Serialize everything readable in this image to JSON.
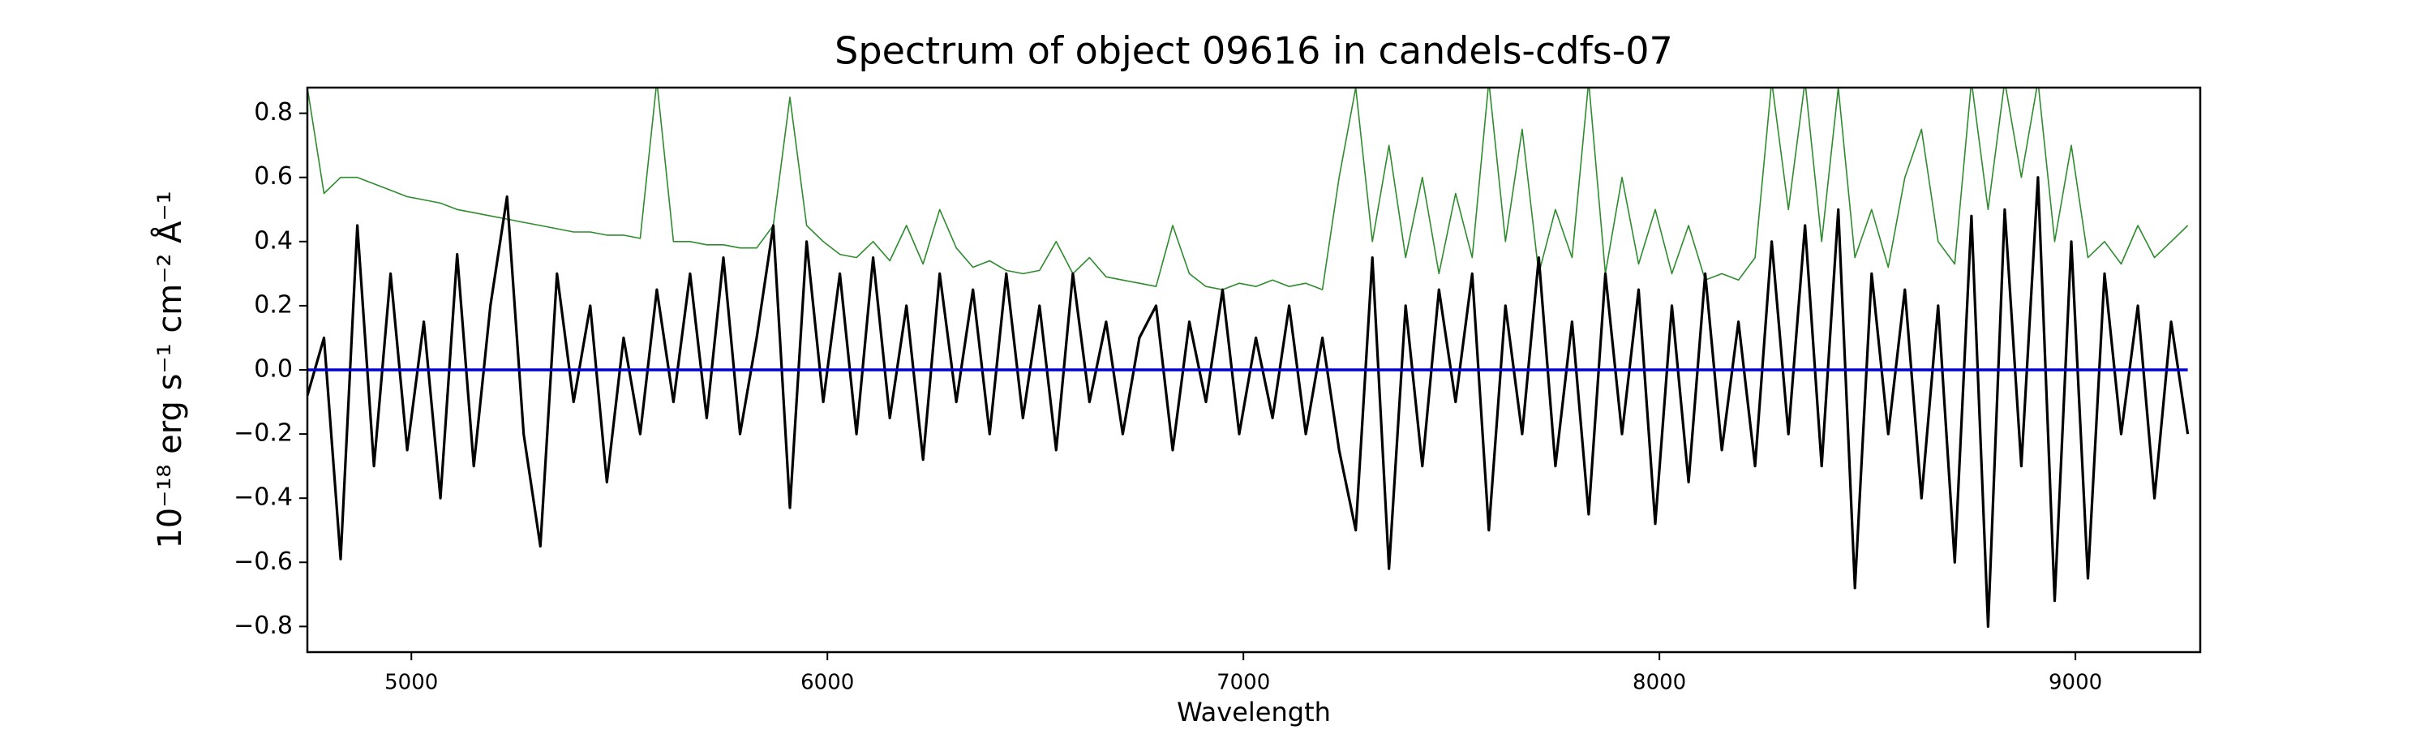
{
  "chart_data": {
    "type": "line",
    "title": "Spectrum of object 09616 in candels-cdfs-07",
    "x_label": "Wavelength",
    "y_label": "10⁻¹⁸ erg s⁻¹ cm⁻² Å⁻¹",
    "xlim": [
      4750,
      9300
    ],
    "xticks": [
      5000,
      6000,
      7000,
      8000,
      9000
    ],
    "ylim": [
      -0.88,
      0.88
    ],
    "yticks": [
      {
        "value": -0.8,
        "label": "−0.8"
      },
      {
        "value": -0.6,
        "label": "−0.6"
      },
      {
        "value": -0.4,
        "label": "−0.4"
      },
      {
        "value": -0.2,
        "label": "−0.2"
      },
      {
        "value": 0,
        "label": "0.0"
      },
      0.2,
      0.4,
      0.6,
      0.8
    ],
    "grid": false,
    "x": [
      4750,
      4790,
      4830,
      4870,
      4910,
      4950,
      4990,
      5030,
      5070,
      5110,
      5150,
      5190,
      5230,
      5270,
      5310,
      5350,
      5390,
      5430,
      5470,
      5510,
      5550,
      5590,
      5630,
      5670,
      5710,
      5750,
      5790,
      5830,
      5870,
      5910,
      5950,
      5990,
      6030,
      6070,
      6110,
      6150,
      6190,
      6230,
      6270,
      6310,
      6350,
      6390,
      6430,
      6470,
      6510,
      6550,
      6590,
      6630,
      6670,
      6710,
      6750,
      6790,
      6830,
      6870,
      6910,
      6950,
      6990,
      7030,
      7070,
      7110,
      7150,
      7190,
      7230,
      7270,
      7310,
      7350,
      7390,
      7430,
      7470,
      7510,
      7550,
      7590,
      7630,
      7670,
      7710,
      7750,
      7790,
      7830,
      7870,
      7910,
      7950,
      7990,
      8030,
      8070,
      8110,
      8150,
      8190,
      8230,
      8270,
      8310,
      8350,
      8390,
      8430,
      8470,
      8510,
      8550,
      8590,
      8630,
      8670,
      8710,
      8750,
      8790,
      8830,
      8870,
      8910,
      8950,
      8990,
      9030,
      9070,
      9110,
      9150,
      9190,
      9230,
      9270
    ],
    "series": [
      {
        "color": "#2e8b2e",
        "width": 1.6,
        "values": [
          0.88,
          0.55,
          0.6,
          0.6,
          0.58,
          0.56,
          0.54,
          0.53,
          0.52,
          0.5,
          0.49,
          0.48,
          0.47,
          0.46,
          0.45,
          0.44,
          0.43,
          0.43,
          0.42,
          0.42,
          0.41,
          0.9,
          0.4,
          0.4,
          0.39,
          0.39,
          0.38,
          0.38,
          0.45,
          0.85,
          0.45,
          0.4,
          0.36,
          0.35,
          0.4,
          0.34,
          0.45,
          0.33,
          0.5,
          0.38,
          0.32,
          0.34,
          0.31,
          0.3,
          0.31,
          0.4,
          0.3,
          0.35,
          0.29,
          0.28,
          0.27,
          0.26,
          0.45,
          0.3,
          0.26,
          0.25,
          0.27,
          0.26,
          0.28,
          0.26,
          0.27,
          0.25,
          0.6,
          0.88,
          0.4,
          0.7,
          0.35,
          0.6,
          0.3,
          0.55,
          0.35,
          0.9,
          0.4,
          0.75,
          0.3,
          0.5,
          0.35,
          0.9,
          0.3,
          0.6,
          0.33,
          0.5,
          0.3,
          0.45,
          0.28,
          0.3,
          0.28,
          0.35,
          0.9,
          0.5,
          0.9,
          0.4,
          0.88,
          0.35,
          0.5,
          0.32,
          0.6,
          0.75,
          0.4,
          0.33,
          0.9,
          0.5,
          0.9,
          0.6,
          0.9,
          0.4,
          0.7,
          0.35,
          0.4,
          0.33,
          0.45,
          0.35,
          0.4,
          0.45
        ]
      },
      {
        "color": "#000000",
        "width": 3.2,
        "values": [
          -0.08,
          0.1,
          -0.59,
          0.45,
          -0.3,
          0.3,
          -0.25,
          0.15,
          -0.4,
          0.36,
          -0.3,
          0.2,
          0.54,
          -0.2,
          -0.55,
          0.3,
          -0.1,
          0.2,
          -0.35,
          0.1,
          -0.2,
          0.25,
          -0.1,
          0.3,
          -0.15,
          0.35,
          -0.2,
          0.1,
          0.45,
          -0.43,
          0.4,
          -0.1,
          0.3,
          -0.2,
          0.35,
          -0.15,
          0.2,
          -0.28,
          0.3,
          -0.1,
          0.25,
          -0.2,
          0.3,
          -0.15,
          0.2,
          -0.25,
          0.3,
          -0.1,
          0.15,
          -0.2,
          0.1,
          0.2,
          -0.25,
          0.15,
          -0.1,
          0.25,
          -0.2,
          0.1,
          -0.15,
          0.2,
          -0.2,
          0.1,
          -0.25,
          -0.5,
          0.35,
          -0.62,
          0.2,
          -0.3,
          0.25,
          -0.1,
          0.3,
          -0.5,
          0.2,
          -0.2,
          0.35,
          -0.3,
          0.15,
          -0.45,
          0.3,
          -0.2,
          0.25,
          -0.48,
          0.2,
          -0.35,
          0.3,
          -0.25,
          0.15,
          -0.3,
          0.4,
          -0.2,
          0.45,
          -0.3,
          0.5,
          -0.68,
          0.3,
          -0.2,
          0.25,
          -0.4,
          0.2,
          -0.6,
          0.48,
          -0.8,
          0.5,
          -0.3,
          0.6,
          -0.72,
          0.4,
          -0.65,
          0.3,
          -0.2,
          0.2,
          -0.4,
          0.15,
          -0.2
        ]
      },
      {
        "color": "#0000cc",
        "width": 3.5,
        "values": [
          0,
          0,
          0,
          0,
          0,
          0,
          0,
          0,
          0,
          0,
          0,
          0,
          0,
          0,
          0,
          0,
          0,
          0,
          0,
          0,
          0,
          0,
          0,
          0,
          0,
          0,
          0,
          0,
          0,
          0,
          0,
          0,
          0,
          0,
          0,
          0,
          0,
          0,
          0,
          0,
          0,
          0,
          0,
          0,
          0,
          0,
          0,
          0,
          0,
          0,
          0,
          0,
          0,
          0,
          0,
          0,
          0,
          0,
          0,
          0,
          0,
          0,
          0,
          0,
          0,
          0,
          0,
          0,
          0,
          0,
          0,
          0,
          0,
          0,
          0,
          0,
          0,
          0,
          0,
          0,
          0,
          0,
          0,
          0,
          0,
          0,
          0,
          0,
          0,
          0,
          0,
          0,
          0,
          0,
          0,
          0,
          0,
          0,
          0,
          0,
          0,
          0,
          0,
          0,
          0,
          0,
          0,
          0,
          0,
          0,
          0,
          0,
          0,
          0
        ]
      }
    ]
  }
}
